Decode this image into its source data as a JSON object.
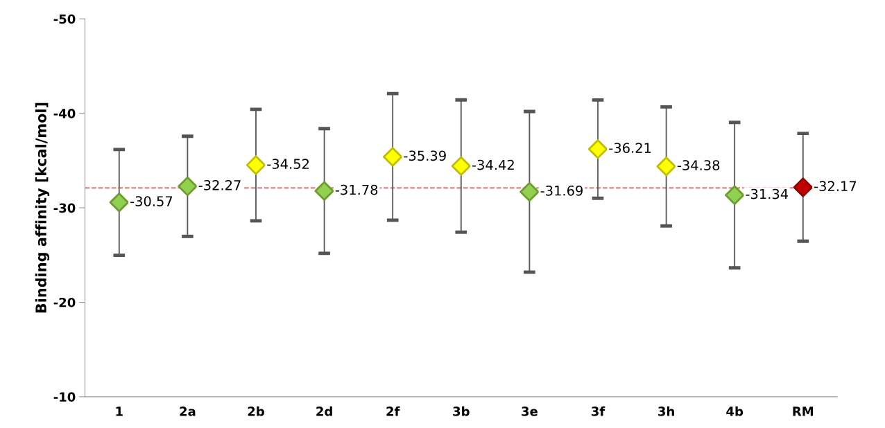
{
  "chart_data": {
    "type": "scatter",
    "ylabel": "Binding affinity [kcal/mol]",
    "categories": [
      "1",
      "2a",
      "2b",
      "2d",
      "2f",
      "3b",
      "3e",
      "3f",
      "3h",
      "4b",
      "RM"
    ],
    "values": [
      -30.57,
      -32.27,
      -34.52,
      -31.78,
      -35.39,
      -34.42,
      -31.69,
      -36.21,
      -34.38,
      -31.34,
      -32.17
    ],
    "errors": [
      5.6,
      5.3,
      5.9,
      6.6,
      6.7,
      7.0,
      8.5,
      5.2,
      6.3,
      7.7,
      5.7
    ],
    "colors": [
      "#92d050",
      "#92d050",
      "#ffff00",
      "#92d050",
      "#ffff00",
      "#ffff00",
      "#92d050",
      "#ffff00",
      "#ffff00",
      "#92d050",
      "#c00000"
    ],
    "marker": "diamond",
    "data_labels": true,
    "ref_lines": [
      {
        "axis": "y",
        "value": -32.1,
        "color": "#d9534f",
        "line_style": "dashed"
      }
    ],
    "ylim": [
      -10,
      -50
    ],
    "yticks": [
      -50,
      -40,
      -30,
      -20,
      -10
    ],
    "grid": false,
    "legend": false
  }
}
